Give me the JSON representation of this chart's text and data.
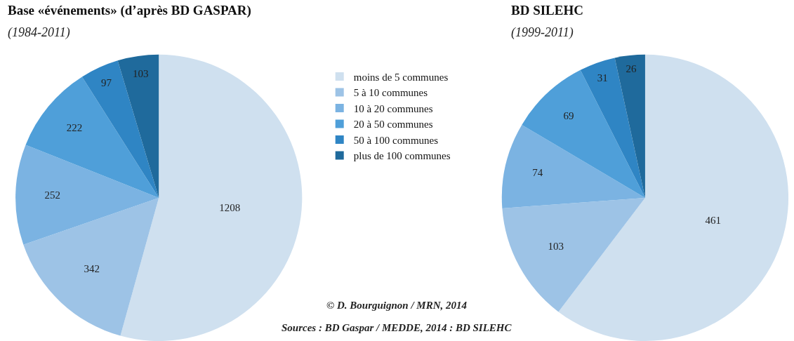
{
  "chart_data": [
    {
      "type": "pie",
      "title": "Base «événements» (d’après BD GASPAR)",
      "subtitle": "(1984-2011)",
      "categories": [
        "moins de 5 communes",
        "5 à 10 communes",
        "10 à 20 communes",
        "20 à 50 communes",
        "50 à 100 communes",
        "plus de 100 communes"
      ],
      "values": [
        1208,
        342,
        252,
        222,
        97,
        103
      ],
      "colors": [
        "#cfe0ef",
        "#9dc3e6",
        "#7bb3e2",
        "#4f9fd9",
        "#2f85c4",
        "#1f6a9c"
      ],
      "data_labels": true,
      "legend": "right",
      "annotations": [
        "© D. Bourguignon / MRN, 2014",
        "Sources : BD Gaspar / MEDDE, 2014 : BD SILEHC"
      ]
    },
    {
      "type": "pie",
      "title": "BD SILEHC",
      "subtitle": "(1999-2011)",
      "categories": [
        null,
        null,
        null,
        null,
        null,
        null
      ],
      "values": [
        461,
        103,
        74,
        69,
        31,
        26
      ],
      "colors": [
        "#cfe0ef",
        "#9dc3e6",
        "#7bb3e2",
        "#4f9fd9",
        "#2f85c4",
        "#1f6a9c"
      ],
      "data_labels": true
    }
  ]
}
